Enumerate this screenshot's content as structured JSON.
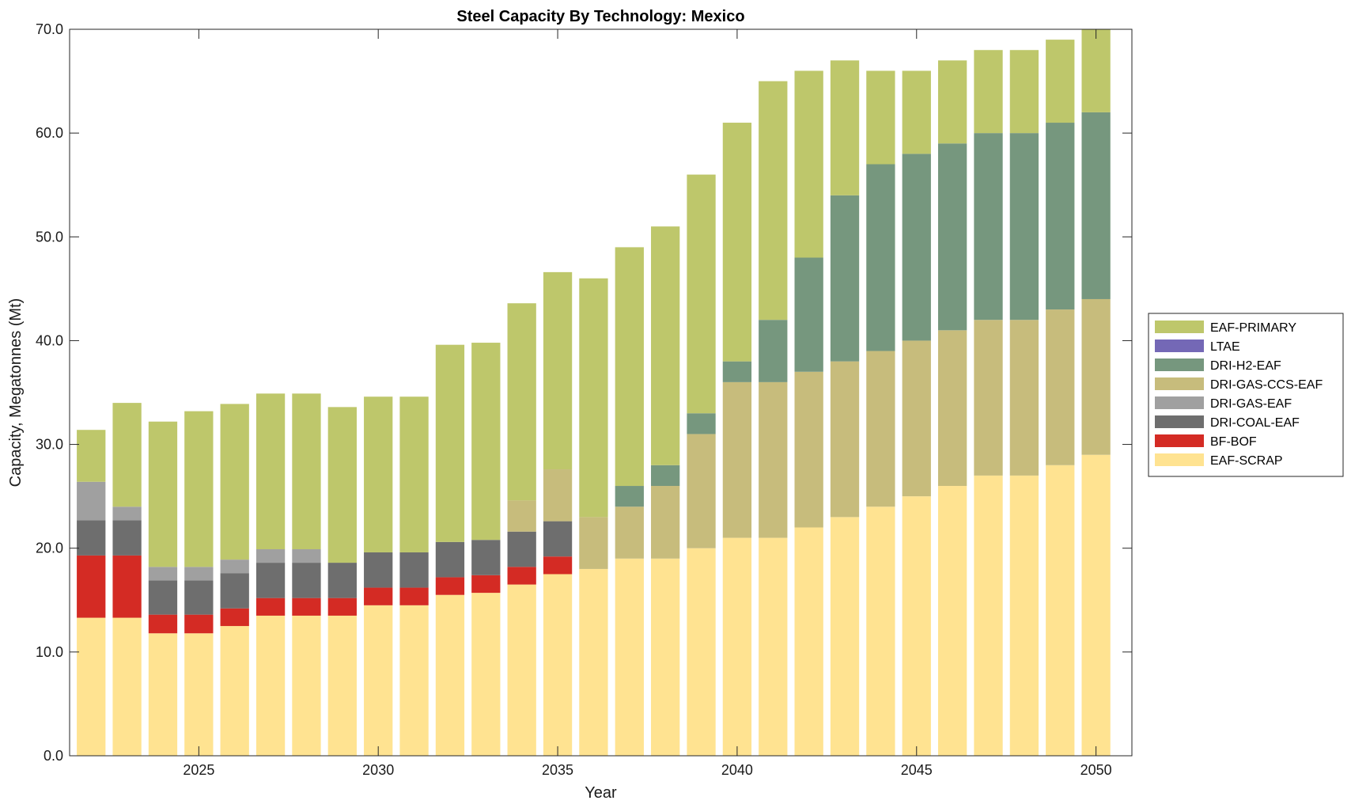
{
  "chart_data": {
    "type": "bar",
    "stacked": true,
    "title": "Steel Capacity By Technology: Mexico",
    "xlabel": "Year",
    "ylabel": "Capacity, Megatonnes (Mt)",
    "ylim": [
      0,
      70
    ],
    "xlim": [
      2021.4,
      2051.0
    ],
    "yticks": [
      "0.0",
      "10.0",
      "20.0",
      "30.0",
      "40.0",
      "50.0",
      "60.0",
      "70.0"
    ],
    "xticks": [
      "2025",
      "2030",
      "2035",
      "2040",
      "2045",
      "2050"
    ],
    "grid": false,
    "legend_position": "right",
    "categories": [
      2022,
      2023,
      2024,
      2025,
      2026,
      2027,
      2028,
      2029,
      2030,
      2031,
      2032,
      2033,
      2034,
      2035,
      2036,
      2037,
      2038,
      2039,
      2040,
      2041,
      2042,
      2043,
      2044,
      2045,
      2046,
      2047,
      2048,
      2049,
      2050
    ],
    "series": [
      {
        "name": "EAF-SCRAP",
        "color": "#FFE391",
        "values": [
          13.3,
          13.3,
          11.8,
          11.8,
          12.5,
          13.5,
          13.5,
          13.5,
          14.5,
          14.5,
          15.5,
          15.7,
          16.5,
          17.5,
          18.0,
          19.0,
          19.0,
          20.0,
          21.0,
          21.0,
          22.0,
          23.0,
          24.0,
          25.0,
          26.0,
          27.0,
          27.0,
          28.0,
          29.0
        ]
      },
      {
        "name": "BF-BOF",
        "color": "#D42B24",
        "values": [
          6.0,
          6.0,
          1.8,
          1.8,
          1.7,
          1.7,
          1.7,
          1.7,
          1.7,
          1.7,
          1.7,
          1.7,
          1.7,
          1.7,
          0,
          0,
          0,
          0,
          0,
          0,
          0,
          0,
          0,
          0,
          0,
          0,
          0,
          0,
          0
        ]
      },
      {
        "name": "DRI-COAL-EAF",
        "color": "#6E6E6E",
        "values": [
          3.4,
          3.4,
          3.3,
          3.3,
          3.4,
          3.4,
          3.4,
          3.4,
          3.4,
          3.4,
          3.4,
          3.4,
          3.4,
          3.4,
          0,
          0,
          0,
          0,
          0,
          0,
          0,
          0,
          0,
          0,
          0,
          0,
          0,
          0,
          0
        ]
      },
      {
        "name": "DRI-GAS-EAF",
        "color": "#A0A0A0",
        "values": [
          3.7,
          1.3,
          1.3,
          1.3,
          1.3,
          1.3,
          1.3,
          0,
          0,
          0,
          0,
          0,
          0,
          0,
          0,
          0,
          0,
          0,
          0,
          0,
          0,
          0,
          0,
          0,
          0,
          0,
          0,
          0,
          0
        ]
      },
      {
        "name": "DRI-GAS-CCS-EAF",
        "color": "#C7BC7C",
        "values": [
          0,
          0,
          0,
          0,
          0,
          0,
          0,
          0,
          0,
          0,
          0,
          0,
          3.0,
          5.0,
          5.0,
          5.0,
          7.0,
          11.0,
          15.0,
          15.0,
          15.0,
          15.0,
          15.0,
          15.0,
          15.0,
          15.0,
          15.0,
          15.0,
          15.0
        ]
      },
      {
        "name": "DRI-H2-EAF",
        "color": "#76977E",
        "values": [
          0,
          0,
          0,
          0,
          0,
          0,
          0,
          0,
          0,
          0,
          0,
          0,
          0,
          0,
          0,
          2.0,
          2.0,
          2.0,
          2.0,
          6.0,
          11.0,
          16.0,
          18.0,
          18.0,
          18.0,
          18.0,
          18.0,
          18.0,
          18.0
        ]
      },
      {
        "name": "LTAE",
        "color": "#7468B6",
        "values": [
          0,
          0,
          0,
          0,
          0,
          0,
          0,
          0,
          0,
          0,
          0,
          0,
          0,
          0,
          0,
          0,
          0,
          0,
          0,
          0,
          0,
          0,
          0,
          0,
          0,
          0,
          0,
          0,
          0
        ]
      },
      {
        "name": "EAF-PRIMARY",
        "color": "#BEC76B",
        "values": [
          5.0,
          10.0,
          14.0,
          15.0,
          15.0,
          15.0,
          15.0,
          15.0,
          15.0,
          15.0,
          19.0,
          19.0,
          19.0,
          19.0,
          23.0,
          23.0,
          23.0,
          23.0,
          23.0,
          23.0,
          18.0,
          13.0,
          9.0,
          8.0,
          8.0,
          8.0,
          8.0,
          8.0,
          8.0
        ]
      }
    ],
    "legend_order": [
      "EAF-PRIMARY",
      "LTAE",
      "DRI-H2-EAF",
      "DRI-GAS-CCS-EAF",
      "DRI-GAS-EAF",
      "DRI-COAL-EAF",
      "BF-BOF",
      "EAF-SCRAP"
    ]
  }
}
